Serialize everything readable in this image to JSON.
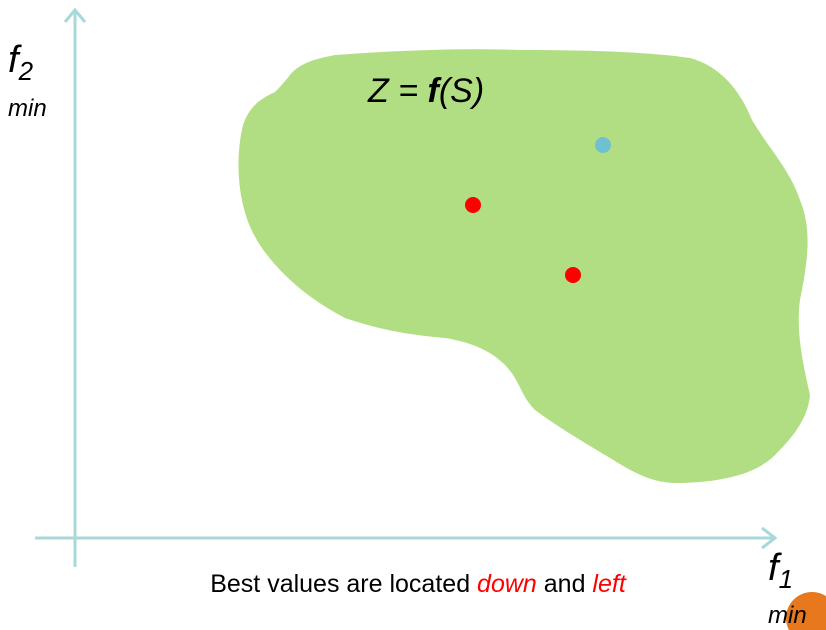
{
  "axes": {
    "y": {
      "symbol": "f",
      "subscript": "2",
      "label": "min"
    },
    "x": {
      "symbol": "f",
      "subscript": "1",
      "label": "min"
    }
  },
  "region": {
    "label_parts": [
      "Z = ",
      "f",
      "(S)"
    ]
  },
  "caption": {
    "parts": [
      "Best values are located ",
      "down",
      " and ",
      "left"
    ]
  }
}
